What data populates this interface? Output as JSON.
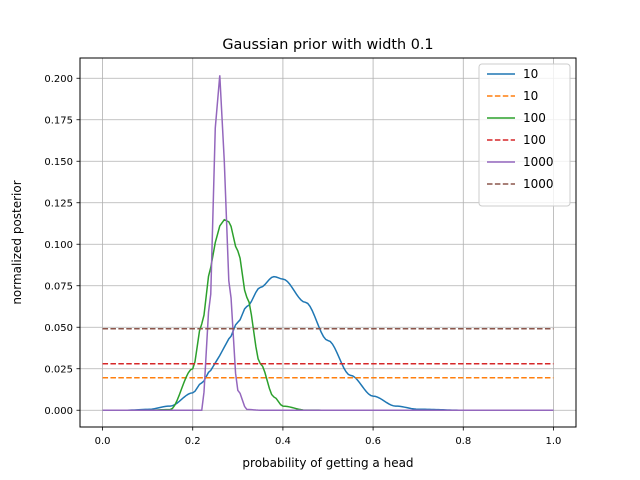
{
  "chart_data": {
    "type": "line",
    "title": "Gaussian prior with width 0.1",
    "xlabel": "probability of getting a head",
    "ylabel": "normalized posterior",
    "xlim": [
      -0.05,
      1.05
    ],
    "ylim": [
      -0.0101,
      0.2122
    ],
    "xticks": [
      0.0,
      0.2,
      0.4,
      0.6,
      0.8,
      1.0
    ],
    "xtick_labels": [
      "0.0",
      "0.2",
      "0.4",
      "0.6",
      "0.8",
      "1.0"
    ],
    "yticks": [
      0.0,
      0.025,
      0.05,
      0.075,
      0.1,
      0.125,
      0.15,
      0.175,
      0.2
    ],
    "ytick_labels": [
      "0.000",
      "0.025",
      "0.050",
      "0.075",
      "0.100",
      "0.125",
      "0.150",
      "0.175",
      "0.200"
    ],
    "grid": true,
    "legend_position": "top-right",
    "x": [
      0.0,
      0.05,
      0.1,
      0.15,
      0.2,
      0.22,
      0.24,
      0.25,
      0.26,
      0.27,
      0.28,
      0.3,
      0.32,
      0.35,
      0.38,
      0.4,
      0.45,
      0.5,
      0.55,
      0.6,
      0.65,
      0.7,
      0.8,
      0.9,
      1.0
    ],
    "series": [
      {
        "name": "10",
        "style": "solid",
        "color": "#1f77b4",
        "values": [
          0.0,
          0.0,
          0.0005,
          0.0025,
          0.0105,
          0.0165,
          0.024,
          0.0285,
          0.033,
          0.038,
          0.043,
          0.053,
          0.0625,
          0.074,
          0.0805,
          0.079,
          0.065,
          0.042,
          0.021,
          0.0085,
          0.0025,
          0.0006,
          0.0,
          0.0,
          0.0
        ]
      },
      {
        "name": "10",
        "style": "dashed",
        "color": "#ff7f0e",
        "values": [
          0.0196,
          0.0196,
          0.0196,
          0.0196,
          0.0196,
          0.0196,
          0.0196,
          0.0196,
          0.0196,
          0.0196,
          0.0196,
          0.0196,
          0.0196,
          0.0196,
          0.0196,
          0.0196,
          0.0196,
          0.0196,
          0.0196,
          0.0196,
          0.0196,
          0.0196,
          0.0196,
          0.0196,
          0.0196
        ]
      },
      {
        "name": "100",
        "style": "solid",
        "color": "#2ca02c",
        "values": [
          0.0,
          0.0,
          0.0,
          0.0004,
          0.025,
          0.052,
          0.086,
          0.101,
          0.111,
          0.1148,
          0.1135,
          0.096,
          0.068,
          0.028,
          0.008,
          0.0025,
          0.0001,
          0.0,
          0.0,
          0.0,
          0.0,
          0.0,
          0.0,
          0.0,
          0.0
        ]
      },
      {
        "name": "100",
        "style": "dashed",
        "color": "#d62728",
        "values": [
          0.028,
          0.028,
          0.028,
          0.028,
          0.028,
          0.028,
          0.028,
          0.028,
          0.028,
          0.028,
          0.028,
          0.028,
          0.028,
          0.028,
          0.028,
          0.028,
          0.028,
          0.028,
          0.028,
          0.028,
          0.028,
          0.028,
          0.028,
          0.028,
          0.028
        ]
      },
      {
        "name": "1000",
        "style": "solid",
        "color": "#9467bd",
        "values": [
          0.0,
          0.0,
          0.0,
          0.0,
          0.0,
          0.0,
          0.07,
          0.17,
          0.2018,
          0.15,
          0.078,
          0.012,
          0.0005,
          0.0,
          0.0,
          0.0,
          0.0,
          0.0,
          0.0,
          0.0,
          0.0,
          0.0,
          0.0,
          0.0,
          0.0
        ]
      },
      {
        "name": "1000",
        "style": "dashed",
        "color": "#8c564b",
        "values": [
          0.0491,
          0.0491,
          0.0491,
          0.0491,
          0.0491,
          0.0491,
          0.0491,
          0.0491,
          0.0491,
          0.0491,
          0.0491,
          0.0491,
          0.0491,
          0.0491,
          0.0491,
          0.0491,
          0.0491,
          0.0491,
          0.0491,
          0.0491,
          0.0491,
          0.0491,
          0.0491,
          0.0491,
          0.0491
        ]
      }
    ]
  }
}
